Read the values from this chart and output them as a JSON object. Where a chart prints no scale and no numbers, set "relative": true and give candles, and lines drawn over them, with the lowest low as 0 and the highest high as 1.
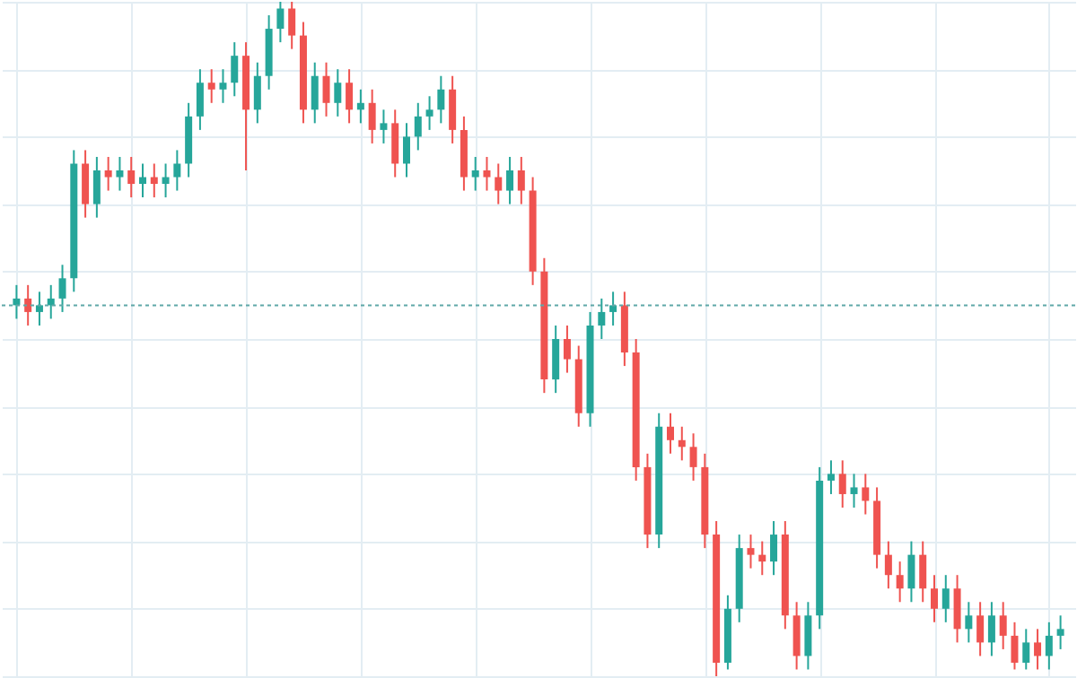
{
  "chart_data": {
    "type": "candlestick",
    "relative": true,
    "grid": true,
    "categories": [
      null,
      null,
      null,
      null,
      null,
      null,
      null,
      null,
      null,
      null,
      null,
      null,
      null,
      null,
      null,
      null,
      null,
      null,
      null,
      null,
      null,
      null,
      null,
      null,
      null,
      null,
      null,
      null,
      null,
      null,
      null,
      null,
      null,
      null,
      null,
      null,
      null,
      null,
      null,
      null,
      null,
      null,
      null,
      null,
      null,
      null,
      null,
      null,
      null,
      null,
      null,
      null,
      null,
      null,
      null,
      null,
      null,
      null,
      null,
      null,
      null,
      null,
      null,
      null,
      null,
      null,
      null,
      null,
      null,
      null,
      null,
      null,
      null,
      null,
      null,
      null,
      null,
      null,
      null,
      null,
      null,
      null,
      null,
      null,
      null,
      null,
      null,
      null,
      null,
      null,
      null,
      null
    ],
    "ohlc": [
      [
        0.55,
        0.58,
        0.53,
        0.56
      ],
      [
        0.56,
        0.58,
        0.52,
        0.54
      ],
      [
        0.54,
        0.57,
        0.52,
        0.55
      ],
      [
        0.55,
        0.58,
        0.53,
        0.56
      ],
      [
        0.56,
        0.61,
        0.54,
        0.59
      ],
      [
        0.59,
        0.78,
        0.57,
        0.76
      ],
      [
        0.76,
        0.78,
        0.68,
        0.7
      ],
      [
        0.7,
        0.77,
        0.68,
        0.75
      ],
      [
        0.75,
        0.77,
        0.72,
        0.74
      ],
      [
        0.74,
        0.77,
        0.72,
        0.75
      ],
      [
        0.75,
        0.77,
        0.71,
        0.73
      ],
      [
        0.73,
        0.76,
        0.71,
        0.74
      ],
      [
        0.74,
        0.76,
        0.71,
        0.73
      ],
      [
        0.73,
        0.76,
        0.71,
        0.74
      ],
      [
        0.74,
        0.78,
        0.72,
        0.76
      ],
      [
        0.76,
        0.85,
        0.74,
        0.83
      ],
      [
        0.83,
        0.9,
        0.81,
        0.88
      ],
      [
        0.88,
        0.9,
        0.85,
        0.87
      ],
      [
        0.87,
        0.9,
        0.85,
        0.88
      ],
      [
        0.88,
        0.94,
        0.86,
        0.92
      ],
      [
        0.92,
        0.94,
        0.75,
        0.84
      ],
      [
        0.84,
        0.91,
        0.82,
        0.89
      ],
      [
        0.89,
        0.98,
        0.87,
        0.96
      ],
      [
        0.96,
        1,
        0.94,
        0.99
      ],
      [
        0.99,
        1,
        0.93,
        0.95
      ],
      [
        0.95,
        0.97,
        0.82,
        0.84
      ],
      [
        0.84,
        0.91,
        0.82,
        0.89
      ],
      [
        0.89,
        0.91,
        0.83,
        0.85
      ],
      [
        0.85,
        0.9,
        0.83,
        0.88
      ],
      [
        0.88,
        0.9,
        0.82,
        0.84
      ],
      [
        0.84,
        0.87,
        0.82,
        0.85
      ],
      [
        0.85,
        0.87,
        0.79,
        0.81
      ],
      [
        0.81,
        0.84,
        0.79,
        0.82
      ],
      [
        0.82,
        0.84,
        0.74,
        0.76
      ],
      [
        0.76,
        0.82,
        0.74,
        0.8
      ],
      [
        0.8,
        0.85,
        0.78,
        0.83
      ],
      [
        0.83,
        0.86,
        0.81,
        0.84
      ],
      [
        0.84,
        0.89,
        0.82,
        0.87
      ],
      [
        0.87,
        0.89,
        0.79,
        0.81
      ],
      [
        0.81,
        0.83,
        0.72,
        0.74
      ],
      [
        0.74,
        0.77,
        0.72,
        0.75
      ],
      [
        0.75,
        0.77,
        0.72,
        0.74
      ],
      [
        0.74,
        0.76,
        0.7,
        0.72
      ],
      [
        0.72,
        0.77,
        0.7,
        0.75
      ],
      [
        0.75,
        0.77,
        0.7,
        0.72
      ],
      [
        0.72,
        0.74,
        0.58,
        0.6
      ],
      [
        0.6,
        0.62,
        0.42,
        0.44
      ],
      [
        0.44,
        0.52,
        0.42,
        0.5
      ],
      [
        0.5,
        0.52,
        0.45,
        0.47
      ],
      [
        0.47,
        0.49,
        0.37,
        0.39
      ],
      [
        0.39,
        0.54,
        0.37,
        0.52
      ],
      [
        0.52,
        0.56,
        0.5,
        0.54
      ],
      [
        0.54,
        0.57,
        0.52,
        0.55
      ],
      [
        0.55,
        0.57,
        0.46,
        0.48
      ],
      [
        0.48,
        0.5,
        0.29,
        0.31
      ],
      [
        0.31,
        0.33,
        0.19,
        0.21
      ],
      [
        0.21,
        0.39,
        0.19,
        0.37
      ],
      [
        0.37,
        0.39,
        0.33,
        0.35
      ],
      [
        0.35,
        0.37,
        0.32,
        0.34
      ],
      [
        0.34,
        0.36,
        0.29,
        0.31
      ],
      [
        0.31,
        0.33,
        0.19,
        0.21
      ],
      [
        0.21,
        0.23,
        0,
        0.02
      ],
      [
        0.02,
        0.12,
        0.01,
        0.1
      ],
      [
        0.1,
        0.21,
        0.08,
        0.19
      ],
      [
        0.19,
        0.21,
        0.16,
        0.18
      ],
      [
        0.18,
        0.2,
        0.15,
        0.17
      ],
      [
        0.17,
        0.23,
        0.15,
        0.21
      ],
      [
        0.21,
        0.23,
        0.07,
        0.09
      ],
      [
        0.09,
        0.11,
        0.01,
        0.03
      ],
      [
        0.03,
        0.11,
        0.01,
        0.09
      ],
      [
        0.09,
        0.31,
        0.07,
        0.29
      ],
      [
        0.29,
        0.32,
        0.27,
        0.3
      ],
      [
        0.3,
        0.32,
        0.25,
        0.27
      ],
      [
        0.27,
        0.3,
        0.25,
        0.28
      ],
      [
        0.28,
        0.3,
        0.24,
        0.26
      ],
      [
        0.26,
        0.28,
        0.16,
        0.18
      ],
      [
        0.18,
        0.2,
        0.13,
        0.15
      ],
      [
        0.15,
        0.17,
        0.11,
        0.13
      ],
      [
        0.13,
        0.2,
        0.11,
        0.18
      ],
      [
        0.18,
        0.2,
        0.11,
        0.13
      ],
      [
        0.13,
        0.15,
        0.08,
        0.1
      ],
      [
        0.1,
        0.15,
        0.08,
        0.13
      ],
      [
        0.13,
        0.15,
        0.05,
        0.07
      ],
      [
        0.07,
        0.11,
        0.05,
        0.09
      ],
      [
        0.09,
        0.11,
        0.03,
        0.05
      ],
      [
        0.05,
        0.11,
        0.03,
        0.09
      ],
      [
        0.09,
        0.11,
        0.04,
        0.06
      ],
      [
        0.06,
        0.08,
        0.01,
        0.02
      ],
      [
        0.02,
        0.07,
        0.01,
        0.05
      ],
      [
        0.05,
        0.07,
        0.01,
        0.03
      ],
      [
        0.03,
        0.08,
        0.01,
        0.06
      ],
      [
        0.06,
        0.09,
        0.04,
        0.07
      ]
    ],
    "colors": [
      "#26a69a",
      "#ef5350",
      "#26a69a",
      "#26a69a",
      "#26a69a",
      "#26a69a",
      "#ef5350",
      "#26a69a",
      "#ef5350",
      "#26a69a",
      "#ef5350",
      "#26a69a",
      "#ef5350",
      "#26a69a",
      "#26a69a",
      "#26a69a",
      "#26a69a",
      "#ef5350",
      "#26a69a",
      "#26a69a",
      "#ef5350",
      "#26a69a",
      "#26a69a",
      "#26a69a",
      "#ef5350",
      "#ef5350",
      "#26a69a",
      "#ef5350",
      "#26a69a",
      "#ef5350",
      "#26a69a",
      "#ef5350",
      "#26a69a",
      "#ef5350",
      "#26a69a",
      "#26a69a",
      "#26a69a",
      "#26a69a",
      "#ef5350",
      "#ef5350",
      "#26a69a",
      "#ef5350",
      "#ef5350",
      "#26a69a",
      "#ef5350",
      "#ef5350",
      "#ef5350",
      "#26a69a",
      "#ef5350",
      "#ef5350",
      "#26a69a",
      "#26a69a",
      "#26a69a",
      "#ef5350",
      "#ef5350",
      "#ef5350",
      "#26a69a",
      "#ef5350",
      "#ef5350",
      "#ef5350",
      "#ef5350",
      "#ef5350",
      "#26a69a",
      "#26a69a",
      "#ef5350",
      "#ef5350",
      "#26a69a",
      "#ef5350",
      "#ef5350",
      "#26a69a",
      "#26a69a",
      "#26a69a",
      "#ef5350",
      "#26a69a",
      "#ef5350",
      "#ef5350",
      "#ef5350",
      "#ef5350",
      "#26a69a",
      "#ef5350",
      "#ef5350",
      "#26a69a",
      "#ef5350",
      "#26a69a",
      "#ef5350",
      "#26a69a",
      "#ef5350",
      "#ef5350",
      "#26a69a",
      "#ef5350",
      "#26a69a",
      "#26a69a"
    ],
    "ref_lines": [
      {
        "axis": "y",
        "value": 0.55,
        "color": "#5fa8a8",
        "line_style": "dotted"
      }
    ]
  }
}
